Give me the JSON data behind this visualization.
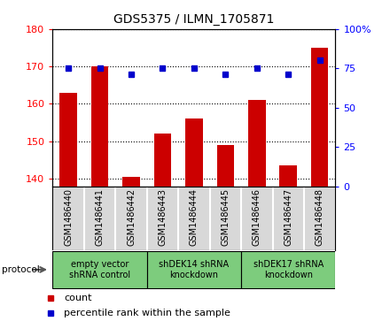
{
  "title": "GDS5375 / ILMN_1705871",
  "samples": [
    "GSM1486440",
    "GSM1486441",
    "GSM1486442",
    "GSM1486443",
    "GSM1486444",
    "GSM1486445",
    "GSM1486446",
    "GSM1486447",
    "GSM1486448"
  ],
  "counts": [
    163,
    170,
    140.5,
    152,
    156,
    149,
    161,
    143.5,
    175
  ],
  "percentile_ranks": [
    75,
    75,
    71,
    75,
    75,
    71,
    75,
    71,
    80
  ],
  "ylim_left": [
    138,
    180
  ],
  "ylim_right": [
    0,
    100
  ],
  "yticks_left": [
    140,
    150,
    160,
    170,
    180
  ],
  "yticks_right": [
    0,
    25,
    50,
    75,
    100
  ],
  "bar_color": "#cc0000",
  "dot_color": "#0000cc",
  "bar_width": 0.55,
  "groups": [
    {
      "label": "empty vector\nshRNA control",
      "start": 0,
      "end": 3
    },
    {
      "label": "shDEK14 shRNA\nknockdown",
      "start": 3,
      "end": 6
    },
    {
      "label": "shDEK17 shRNA\nknockdown",
      "start": 6,
      "end": 9
    }
  ],
  "group_color": "#7dcc7d",
  "legend_count_label": "count",
  "legend_pct_label": "percentile rank within the sample",
  "protocol_label": "protocol",
  "sample_bg_color": "#d8d8d8",
  "plot_bg": "#ffffff"
}
